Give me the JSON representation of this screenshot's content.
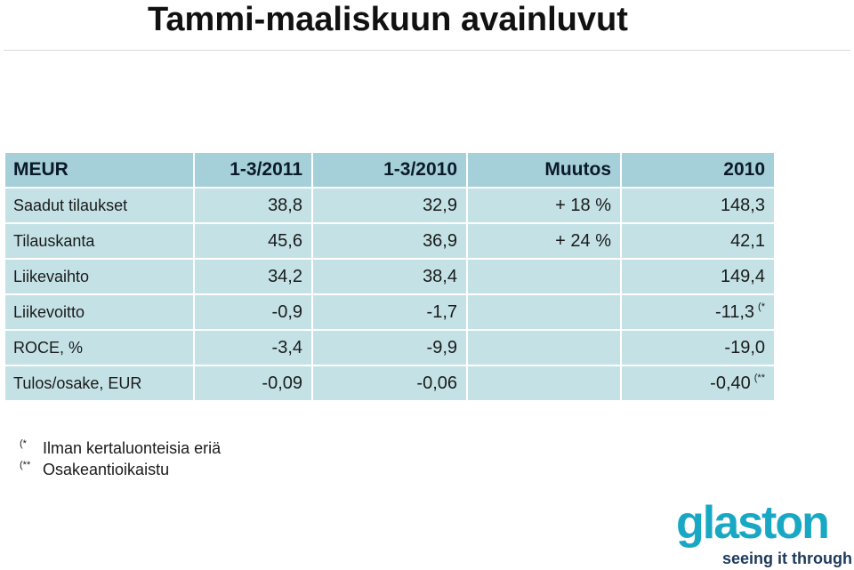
{
  "title": "Tammi-maaliskuun avainluvut",
  "table": {
    "headers": [
      "MEUR",
      "1-3/2011",
      "1-3/2010",
      "Muutos",
      "2010"
    ],
    "rows": [
      {
        "label": "Saadut tilaukset",
        "q2011": "38,8",
        "q2010": "32,9",
        "change": "+ 18 %",
        "y2010": "148,3",
        "y2010_mark": ""
      },
      {
        "label": "Tilauskanta",
        "q2011": "45,6",
        "q2010": "36,9",
        "change": "+ 24 %",
        "y2010": "42,1",
        "y2010_mark": ""
      },
      {
        "label": "Liikevaihto",
        "q2011": "34,2",
        "q2010": "38,4",
        "change": "",
        "y2010": "149,4",
        "y2010_mark": ""
      },
      {
        "label": "Liikevoitto",
        "q2011": "-0,9",
        "q2010": "-1,7",
        "change": "",
        "y2010": "-11,3",
        "y2010_mark": "(*"
      },
      {
        "label": "ROCE, %",
        "q2011": "-3,4",
        "q2010": "-9,9",
        "change": "",
        "y2010": "-19,0",
        "y2010_mark": ""
      },
      {
        "label": "Tulos/osake, EUR",
        "q2011": "-0,09",
        "q2010": "-0,06",
        "change": "",
        "y2010": "-0,40",
        "y2010_mark": "(**"
      }
    ]
  },
  "footnotes": [
    {
      "mark": "(*",
      "text": "Ilman kertaluonteisia eriä"
    },
    {
      "mark": "(**",
      "text": "Osakeantioikaistu"
    }
  ],
  "logo": {
    "wordmark": "glaston",
    "tagline": "seeing it through"
  },
  "colors": {
    "header_bg": "#a6d0d9",
    "cell_bg": "#c4e2e6",
    "logo_primary": "#19a8c4",
    "logo_secondary": "#1d3a5c"
  }
}
